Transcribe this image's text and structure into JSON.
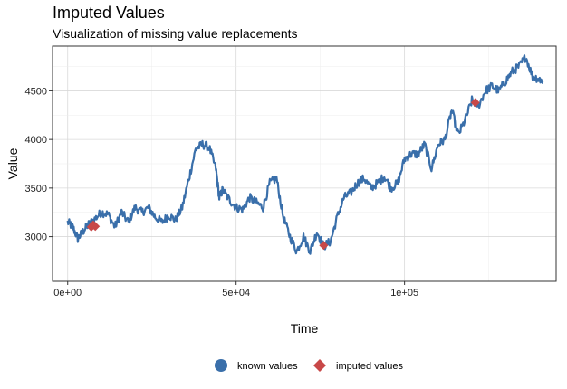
{
  "chart_data": {
    "type": "line",
    "title": "Imputed Values",
    "subtitle": "Visualization of missing value replacements",
    "xlabel": "Time",
    "ylabel": "Value",
    "xlim": [
      -4500,
      145000
    ],
    "ylim": [
      2540,
      4960
    ],
    "x_ticks": [
      0,
      50000,
      100000
    ],
    "x_tick_labels": [
      "0e+00",
      "5e+04",
      "1e+05"
    ],
    "y_ticks": [
      3000,
      3500,
      4000,
      4500
    ],
    "y_tick_labels": [
      "3000",
      "3500",
      "4000",
      "4500"
    ],
    "grid": true,
    "legend_position": "bottom",
    "colors": {
      "known": "#3a6faa",
      "imputed": "#c84848",
      "grid_major": "#d9d9d9",
      "grid_minor": "#ededed",
      "border": "#333333"
    },
    "series": [
      {
        "name": "known values",
        "marker": "circle",
        "x": [
          0,
          1500,
          3000,
          4500,
          6000,
          8000,
          10000,
          12000,
          14000,
          16000,
          18000,
          20000,
          22000,
          24000,
          26000,
          28000,
          30000,
          32000,
          34000,
          36000,
          38000,
          40000,
          42000,
          44000,
          45000,
          46000,
          48000,
          50000,
          52000,
          54000,
          56000,
          58000,
          60000,
          62000,
          64000,
          66000,
          68000,
          70000,
          72000,
          74000,
          76000,
          78000,
          80000,
          82000,
          84000,
          86000,
          88000,
          90000,
          92000,
          94000,
          96000,
          98000,
          100000,
          102000,
          104000,
          106000,
          108000,
          110000,
          112000,
          114000,
          116000,
          118000,
          120000,
          122000,
          124000,
          126000,
          128000,
          130000,
          132000,
          134000,
          136000,
          138000,
          140000,
          141000
        ],
        "y": [
          3150,
          3100,
          2980,
          3050,
          3120,
          3180,
          3250,
          3230,
          3100,
          3250,
          3150,
          3300,
          3250,
          3300,
          3200,
          3150,
          3220,
          3170,
          3300,
          3600,
          3900,
          3950,
          3920,
          3700,
          3400,
          3480,
          3380,
          3300,
          3280,
          3400,
          3350,
          3300,
          3550,
          3600,
          3200,
          3000,
          2850,
          3000,
          2850,
          3050,
          2900,
          2950,
          3200,
          3400,
          3450,
          3550,
          3600,
          3500,
          3550,
          3620,
          3500,
          3550,
          3800,
          3850,
          3850,
          3950,
          3700,
          3950,
          4000,
          4300,
          4050,
          4200,
          4400,
          4350,
          4500,
          4550,
          4500,
          4600,
          4700,
          4750,
          4850,
          4650,
          4620,
          4600
        ]
      },
      {
        "name": "imputed values",
        "marker": "diamond",
        "x": [
          7000,
          7600,
          8200,
          76000,
          121000
        ],
        "y": [
          3100,
          3120,
          3105,
          2910,
          4380
        ]
      }
    ]
  }
}
